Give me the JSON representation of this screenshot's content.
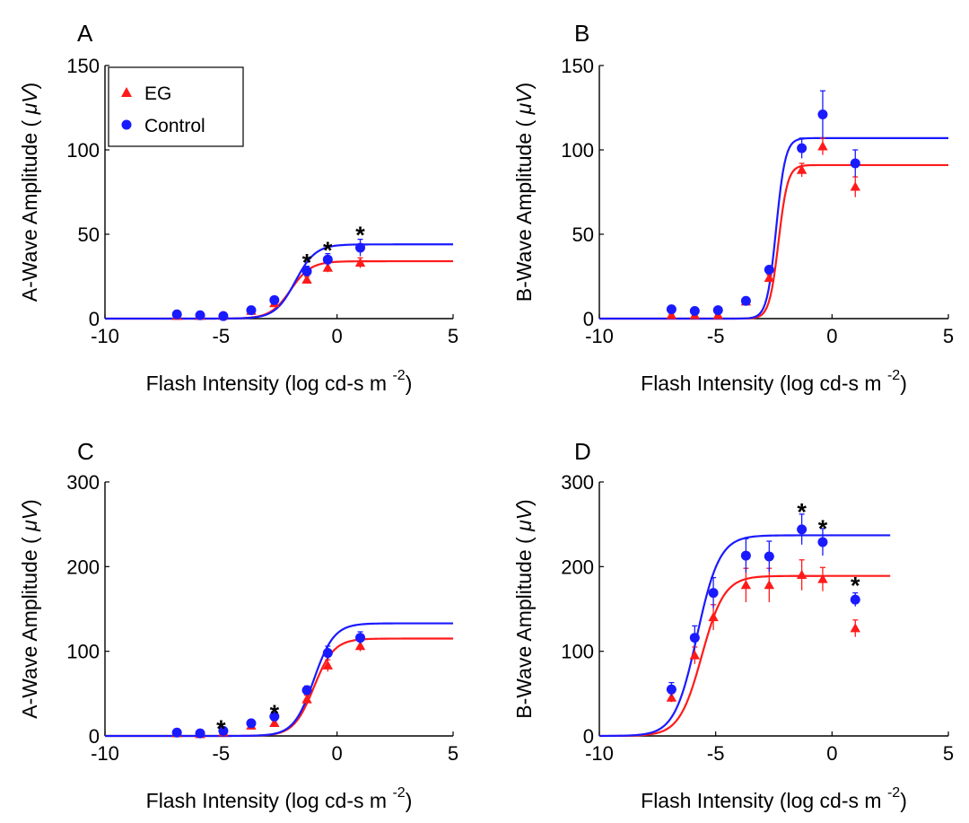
{
  "colors": {
    "EG": "#ff1a1a",
    "Control": "#1a1aff",
    "axis": "#000000"
  },
  "legend": {
    "placement": "top-left",
    "entries": [
      {
        "name": "EG",
        "marker": "triangle"
      },
      {
        "name": "Control",
        "marker": "circle"
      }
    ]
  },
  "chart_data": [
    {
      "panel": "A",
      "type": "scatter",
      "xlabel": "Flash Intensity (log cd-s m",
      "xlabel_sup": "-2",
      "xlabel_close": ")",
      "ylabel": "A-Wave Amplitude (",
      "ylabel_unit": "μV",
      "ylabel_close": ")",
      "xlim": [
        -10,
        5
      ],
      "ylim": [
        0,
        150
      ],
      "xticks": [
        -10,
        -5,
        0,
        5
      ],
      "yticks": [
        0,
        50,
        100,
        150
      ],
      "grid": false,
      "legend": true,
      "series": [
        {
          "name": "EG",
          "x": [
            -6.9,
            -5.9,
            -4.9,
            -3.7,
            -2.7,
            -1.3,
            -0.4,
            1.0
          ],
          "y": [
            1.5,
            1.5,
            1.5,
            4.5,
            9,
            23,
            30,
            33
          ],
          "err": [
            1,
            1,
            1,
            1,
            1.5,
            2,
            2.5,
            3
          ],
          "fit": {
            "top": 34,
            "log_ec50": -2.0,
            "slope": 1.0,
            "x_range": [
              -10,
              5
            ]
          }
        },
        {
          "name": "Control",
          "x": [
            -6.9,
            -5.9,
            -4.9,
            -3.7,
            -2.7,
            -1.3,
            -0.4,
            1.0
          ],
          "y": [
            2.5,
            2,
            1.5,
            5,
            11,
            28,
            35,
            42
          ],
          "err": [
            1,
            1,
            1,
            1,
            1.5,
            3,
            3.5,
            5
          ],
          "fit": {
            "top": 44,
            "log_ec50": -1.8,
            "slope": 1.0,
            "x_range": [
              -10,
              5
            ]
          }
        }
      ],
      "annotations": [
        {
          "text": "*",
          "x": -1.3,
          "y": 36
        },
        {
          "text": "*",
          "x": -0.4,
          "y": 43
        },
        {
          "text": "*",
          "x": 1.0,
          "y": 52
        }
      ]
    },
    {
      "panel": "B",
      "type": "scatter",
      "xlabel": "Flash Intensity (log cd-s m",
      "xlabel_sup": "-2",
      "xlabel_close": ")",
      "ylabel": "B-Wave Amplitude (",
      "ylabel_unit": "μV",
      "ylabel_close": ")",
      "xlim": [
        -10,
        5
      ],
      "ylim": [
        0,
        150
      ],
      "xticks": [
        -10,
        -5,
        0,
        5
      ],
      "yticks": [
        0,
        50,
        100,
        150
      ],
      "grid": false,
      "legend": false,
      "series": [
        {
          "name": "EG",
          "x": [
            -6.9,
            -5.9,
            -4.9,
            -3.7,
            -2.7,
            -1.3,
            -0.4,
            1.0
          ],
          "y": [
            2,
            2,
            2,
            10,
            24,
            88,
            102,
            78
          ],
          "err": [
            1,
            1,
            1,
            1.5,
            2,
            4,
            5,
            6
          ],
          "fit": {
            "top": 91,
            "log_ec50": -2.3,
            "slope": 2.2,
            "x_range": [
              -10,
              5
            ]
          }
        },
        {
          "name": "Control",
          "x": [
            -6.9,
            -5.9,
            -4.9,
            -3.7,
            -2.7,
            -1.3,
            -0.4,
            1.0
          ],
          "y": [
            5.5,
            4.5,
            5,
            10.5,
            29,
            101,
            121,
            92
          ],
          "err": [
            1,
            1,
            1,
            1.5,
            2,
            6,
            14,
            8
          ],
          "fit": {
            "top": 107,
            "log_ec50": -2.4,
            "slope": 2.2,
            "x_range": [
              -10,
              5
            ]
          }
        }
      ],
      "annotations": []
    },
    {
      "panel": "C",
      "type": "scatter",
      "xlabel": "Flash Intensity (log cd-s m",
      "xlabel_sup": "-2",
      "xlabel_close": ")",
      "ylabel": "A-Wave Amplitude (",
      "ylabel_unit": "μV",
      "ylabel_close": ")",
      "xlim": [
        -10,
        5
      ],
      "ylim": [
        0,
        300
      ],
      "xticks": [
        -10,
        -5,
        0,
        5
      ],
      "yticks": [
        0,
        100,
        200,
        300
      ],
      "grid": false,
      "legend": false,
      "series": [
        {
          "name": "EG",
          "x": [
            -6.9,
            -5.9,
            -4.9,
            -3.7,
            -2.7,
            -1.3,
            -0.4,
            1.0
          ],
          "y": [
            3,
            2,
            4,
            12,
            15,
            43,
            83,
            106
          ],
          "err": [
            1,
            1,
            1.5,
            2,
            3,
            5,
            7,
            6
          ],
          "fit": {
            "top": 115,
            "log_ec50": -1.0,
            "slope": 1.0,
            "x_range": [
              -10,
              5
            ]
          }
        },
        {
          "name": "Control",
          "x": [
            -6.9,
            -5.9,
            -4.9,
            -3.7,
            -2.7,
            -1.3,
            -0.4,
            1.0
          ],
          "y": [
            4,
            3,
            6,
            15,
            23,
            54,
            98,
            116
          ],
          "err": [
            1,
            1,
            1.5,
            2,
            3,
            5,
            8,
            7
          ],
          "fit": {
            "top": 133,
            "log_ec50": -1.0,
            "slope": 1.0,
            "x_range": [
              -10,
              5
            ]
          }
        }
      ],
      "annotations": [
        {
          "text": "*",
          "x": -5.0,
          "y": 14
        },
        {
          "text": "*",
          "x": -2.7,
          "y": 32
        }
      ]
    },
    {
      "panel": "D",
      "type": "scatter",
      "xlabel": "Flash Intensity (log cd-s m",
      "xlabel_sup": "-2",
      "xlabel_close": ")",
      "ylabel": "B-Wave Amplitude (",
      "ylabel_unit": "μV",
      "ylabel_close": ")",
      "xlim": [
        -10,
        5
      ],
      "ylim": [
        0,
        300
      ],
      "xticks": [
        -10,
        -5,
        0,
        5
      ],
      "yticks": [
        0,
        100,
        200,
        300
      ],
      "grid": false,
      "legend": false,
      "series": [
        {
          "name": "EG",
          "x": [
            -6.9,
            -5.9,
            -5.1,
            -3.7,
            -2.7,
            -1.3,
            -0.4,
            1.0
          ],
          "y": [
            45,
            95,
            140,
            178,
            178,
            190,
            185,
            127
          ],
          "err": [
            5,
            10,
            15,
            20,
            20,
            18,
            14,
            10
          ],
          "fit": {
            "top": 189,
            "log_ec50": -5.6,
            "slope": 0.9,
            "x_range": [
              -10,
              2.5
            ]
          }
        },
        {
          "name": "Control",
          "x": [
            -6.9,
            -5.9,
            -5.1,
            -3.7,
            -2.7,
            -1.3,
            -0.4,
            1.0
          ],
          "y": [
            55,
            116,
            169,
            213,
            212,
            244,
            229,
            161
          ],
          "err": [
            8,
            14,
            18,
            20,
            18,
            18,
            16,
            8
          ],
          "fit": {
            "top": 237,
            "log_ec50": -5.8,
            "slope": 0.9,
            "x_range": [
              -10,
              2.5
            ]
          }
        }
      ],
      "annotations": [
        {
          "text": "*",
          "x": -1.3,
          "y": 270
        },
        {
          "text": "*",
          "x": -0.4,
          "y": 250
        },
        {
          "text": "*",
          "x": 1.0,
          "y": 183
        }
      ]
    }
  ]
}
